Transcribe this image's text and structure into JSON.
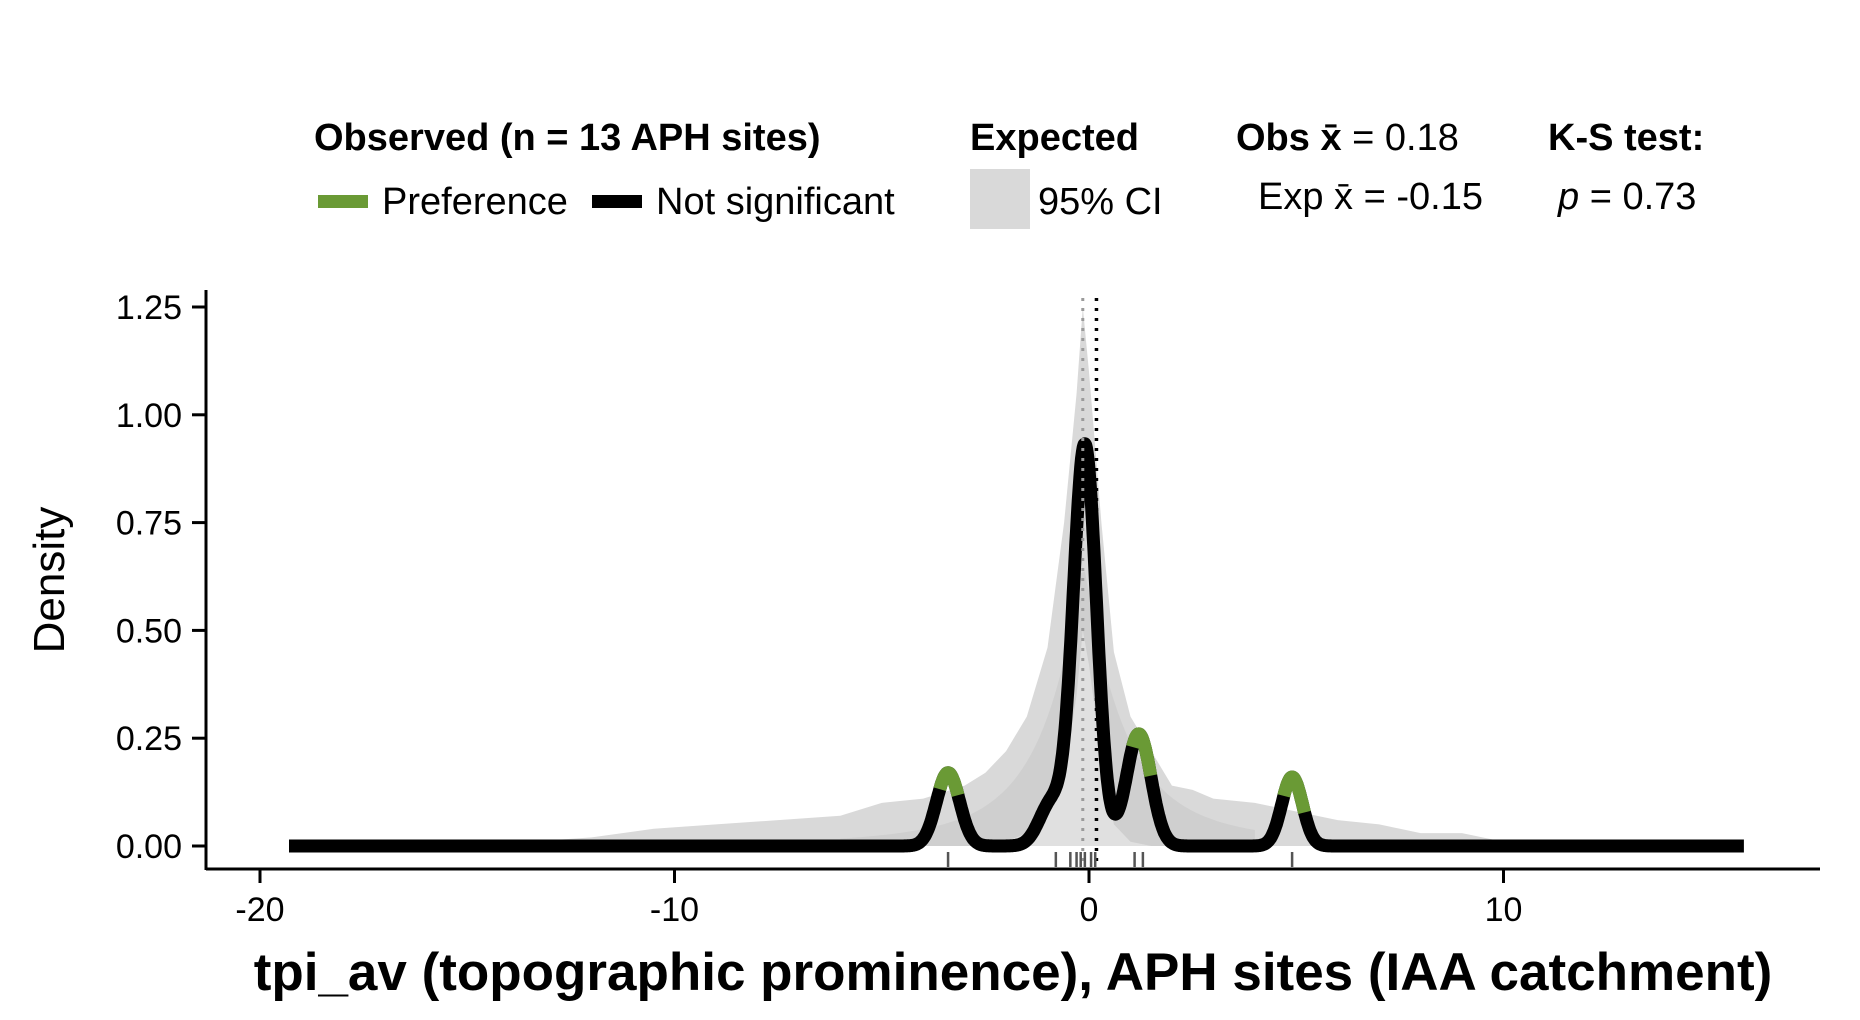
{
  "legend": {
    "observed_title": "Observed (n = 13 APH sites)",
    "preference_label": "Preference",
    "not_significant_label": "Not significant",
    "expected_title": "Expected",
    "ci_label": "95% CI",
    "obs_mean_prefix": "Obs ",
    "obs_mean_symbol": "x̄",
    "obs_mean_value": " = 0.18",
    "exp_mean_prefix": "Exp ",
    "exp_mean_symbol": "x̄",
    "exp_mean_value": " = -0.15",
    "ks_title": "K-S test:",
    "ks_p_symbol": "p",
    "ks_p_value": " = 0.73"
  },
  "colors": {
    "preference": "#6a9a35",
    "not_significant": "#000000",
    "ci_fill": "#d9d9d9",
    "expected_dark": "#c6c6c6",
    "obs_mean_line": "#000000",
    "exp_mean_line": "#9a9a9a"
  },
  "chart_data": {
    "type": "area",
    "xlabel": "tpi_av (topographic prominence), APH sites (IAA catchment)",
    "ylabel": "Density",
    "xlim": [
      -20.5,
      17.8
    ],
    "ylim": [
      -0.05,
      1.3
    ],
    "x_ticks": [
      -20,
      -10,
      0,
      10
    ],
    "x_tick_labels": [
      "-20",
      "-10",
      "0",
      "10"
    ],
    "y_ticks": [
      0,
      0.25,
      0.5,
      0.75,
      1.0,
      1.25
    ],
    "y_tick_labels": [
      "0.00",
      "0.25",
      "0.50",
      "0.75",
      "1.00",
      "1.25"
    ],
    "obs_mean": 0.18,
    "exp_mean": -0.15,
    "observed_range": [
      -19.3,
      15.8
    ],
    "observed_peaks": [
      {
        "center": -3.4,
        "height": 0.17,
        "sigma": 0.28
      },
      {
        "center": -0.9,
        "height": 0.1,
        "sigma": 0.3
      },
      {
        "center": -0.1,
        "height": 0.93,
        "sigma": 0.28
      },
      {
        "center": 1.2,
        "height": 0.26,
        "sigma": 0.3
      },
      {
        "center": 4.9,
        "height": 0.16,
        "sigma": 0.25
      }
    ],
    "preference_segments": [
      [
        -3.6,
        -3.15
      ],
      [
        1.05,
        1.5
      ],
      [
        4.7,
        5.2
      ]
    ],
    "ci_envelope": {
      "x": [
        -13.5,
        -12,
        -10.5,
        -9,
        -7.5,
        -6,
        -5,
        -4,
        -3,
        -2.5,
        -2,
        -1.5,
        -1,
        -0.6,
        -0.3,
        -0.15,
        0,
        0.3,
        0.6,
        1,
        1.5,
        2,
        2.5,
        3,
        4,
        5,
        6,
        7,
        8,
        9,
        10,
        11
      ],
      "upper": [
        0.01,
        0.02,
        0.04,
        0.05,
        0.06,
        0.07,
        0.1,
        0.11,
        0.14,
        0.17,
        0.22,
        0.3,
        0.46,
        0.75,
        1.05,
        1.25,
        1.1,
        0.75,
        0.45,
        0.3,
        0.22,
        0.14,
        0.13,
        0.11,
        0.1,
        0.08,
        0.06,
        0.05,
        0.03,
        0.03,
        0.01,
        0.0
      ],
      "lower": [
        0,
        0,
        0,
        0,
        0,
        0,
        0,
        0,
        0,
        0,
        0.01,
        0.03,
        0.07,
        0.16,
        0.35,
        0.5,
        0.42,
        0.2,
        0.05,
        0.01,
        0,
        0,
        0,
        0,
        0,
        0,
        0,
        0,
        0,
        0,
        0,
        0
      ]
    },
    "rug": [
      -3.4,
      -0.8,
      -0.45,
      -0.3,
      -0.2,
      -0.1,
      0.05,
      0.15,
      1.1,
      1.3,
      4.9
    ]
  }
}
